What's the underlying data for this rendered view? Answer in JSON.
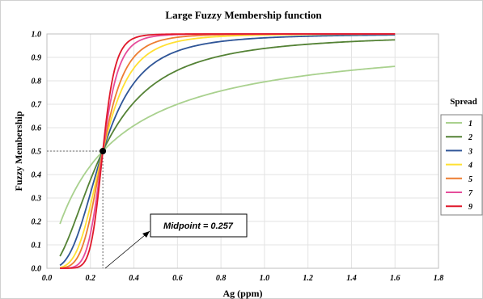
{
  "chart_data": {
    "type": "line",
    "title": "Large Fuzzy Membership function",
    "xlabel": "Ag (ppm)",
    "ylabel": "Fuzzy Membership",
    "xlim": [
      0.0,
      1.8
    ],
    "ylim": [
      0.0,
      1.0
    ],
    "x_ticks": [
      "0.0",
      "0.2",
      "0.4",
      "0.6",
      "0.8",
      "1.0",
      "1.2",
      "1.4",
      "1.6",
      "1.8"
    ],
    "y_ticks": [
      "0.0",
      "0.1",
      "0.2",
      "0.3",
      "0.4",
      "0.5",
      "0.6",
      "0.7",
      "0.8",
      "0.9",
      "1.0"
    ],
    "grid": true,
    "legend": {
      "title": "Spread",
      "placement": "right"
    },
    "x_range": [
      0.06,
      1.6
    ],
    "midpoint": 0.257,
    "midpoint_y": 0.5,
    "annotation": "Midpoint = 0.257",
    "series": [
      {
        "name": "1",
        "spread": 1,
        "color": "#a9d18e"
      },
      {
        "name": "2",
        "spread": 2,
        "color": "#548235"
      },
      {
        "name": "3",
        "spread": 3,
        "color": "#2f5597"
      },
      {
        "name": "4",
        "spread": 4,
        "color": "#ffe033"
      },
      {
        "name": "5",
        "spread": 5,
        "color": "#ed7d31"
      },
      {
        "name": "7",
        "spread": 7,
        "color": "#e64d9b"
      },
      {
        "name": "9",
        "spread": 9,
        "color": "#e0192b"
      }
    ]
  }
}
